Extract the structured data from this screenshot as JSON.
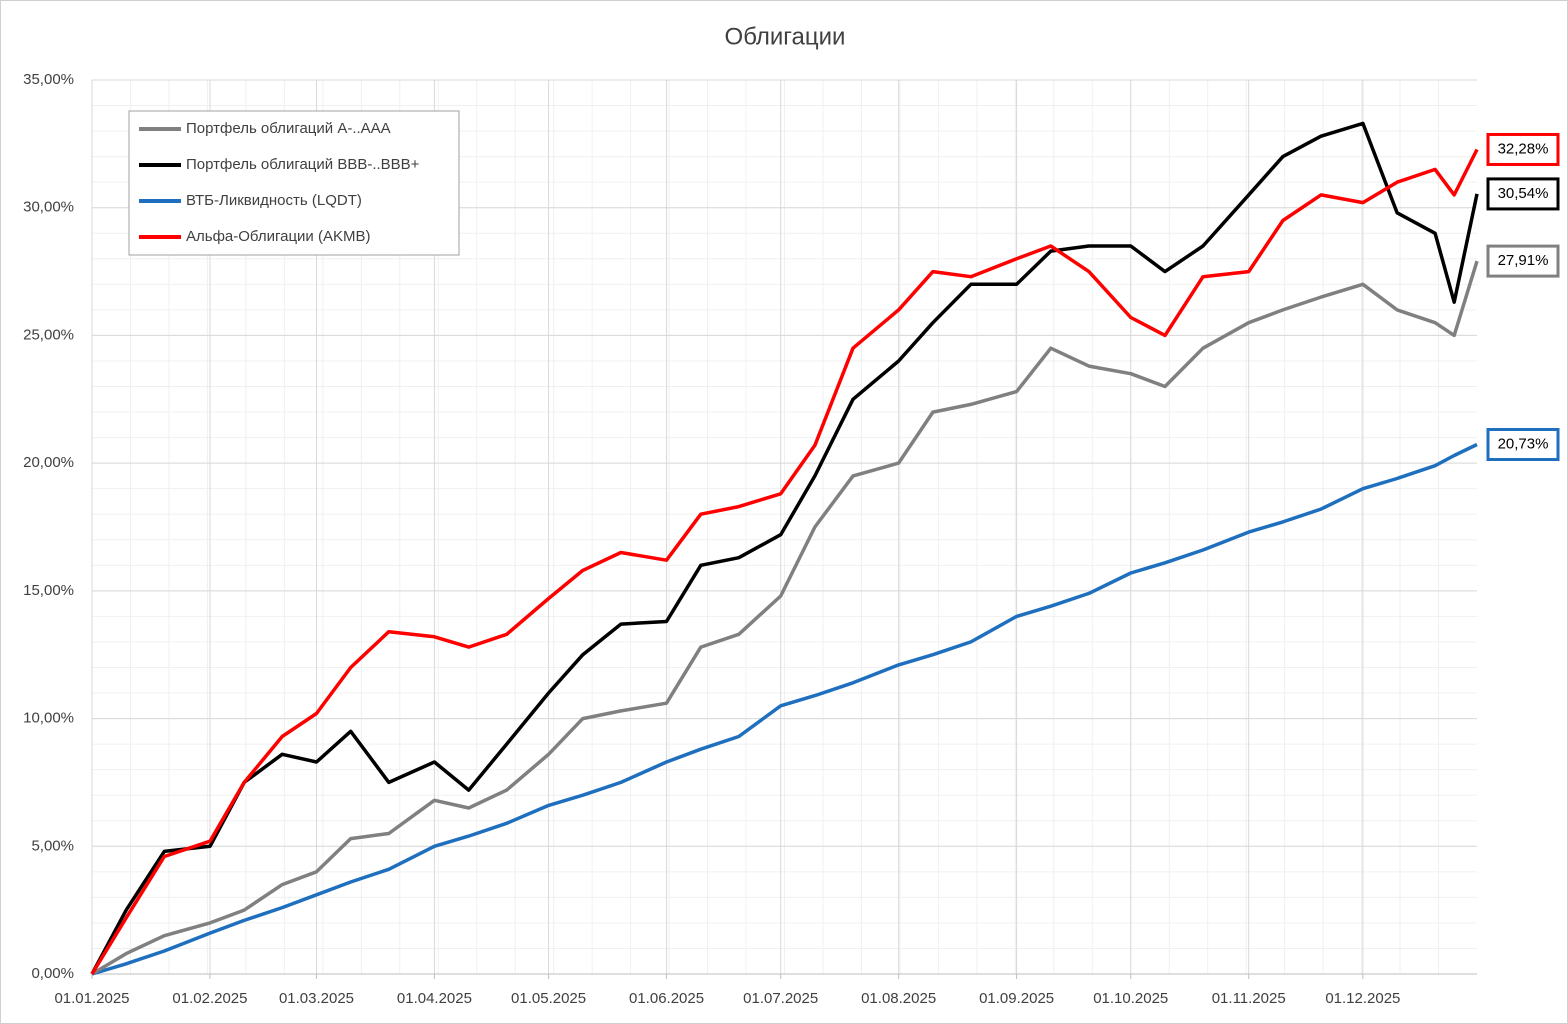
{
  "chart_data": {
    "type": "line",
    "title": "Облигации",
    "x": [
      "01.01.2025",
      "10.01.2025",
      "20.01.2025",
      "01.02.2025",
      "10.02.2025",
      "20.02.2025",
      "01.03.2025",
      "10.03.2025",
      "20.03.2025",
      "01.04.2025",
      "10.04.2025",
      "20.04.2025",
      "01.05.2025",
      "10.05.2025",
      "20.05.2025",
      "01.06.2025",
      "10.06.2025",
      "20.06.2025",
      "01.07.2025",
      "10.07.2025",
      "20.07.2025",
      "01.08.2025",
      "10.08.2025",
      "20.08.2025",
      "01.09.2025",
      "10.09.2025",
      "20.09.2025",
      "01.10.2025",
      "10.10.2025",
      "20.10.2025",
      "01.11.2025",
      "10.11.2025",
      "20.11.2025",
      "01.12.2025",
      "10.12.2025",
      "20.12.2025",
      "25.12.2025",
      "31.12.2025"
    ],
    "series": [
      {
        "name": "Портфель облигаций А-..ААА",
        "color": "#808080",
        "end_label": "27,91%",
        "values": [
          0,
          0.8,
          1.5,
          2.0,
          2.5,
          3.5,
          4.0,
          5.3,
          5.5,
          6.8,
          6.5,
          7.2,
          8.6,
          10.0,
          10.3,
          10.6,
          12.8,
          13.3,
          14.8,
          17.5,
          19.5,
          20.0,
          22.0,
          22.3,
          22.8,
          24.5,
          23.8,
          23.5,
          23.0,
          24.5,
          25.5,
          26.0,
          26.5,
          27.0,
          26.0,
          25.5,
          25.0,
          27.91
        ]
      },
      {
        "name": "Портфель облигаций BBB-..BBB+",
        "color": "#000000",
        "end_label": "30,54%",
        "values": [
          0,
          2.5,
          4.8,
          5.0,
          7.5,
          8.6,
          8.3,
          9.5,
          7.5,
          8.3,
          7.2,
          9.0,
          11.0,
          12.5,
          13.7,
          13.8,
          16.0,
          16.3,
          17.2,
          19.5,
          22.5,
          24.0,
          25.5,
          27.0,
          27.0,
          28.3,
          28.5,
          28.5,
          27.5,
          28.5,
          30.5,
          32.0,
          32.8,
          33.3,
          29.8,
          29.0,
          26.3,
          30.54
        ]
      },
      {
        "name": "ВТБ-Ликвидность (LQDT)",
        "color": "#1f6fbf",
        "end_label": "20,73%",
        "values": [
          0,
          0.4,
          0.9,
          1.6,
          2.1,
          2.6,
          3.1,
          3.6,
          4.1,
          5.0,
          5.4,
          5.9,
          6.6,
          7.0,
          7.5,
          8.3,
          8.8,
          9.3,
          10.5,
          10.9,
          11.4,
          12.1,
          12.5,
          13.0,
          14.0,
          14.4,
          14.9,
          15.7,
          16.1,
          16.6,
          17.3,
          17.7,
          18.2,
          19.0,
          19.4,
          19.9,
          20.3,
          20.73
        ]
      },
      {
        "name": "Альфа-Облигации (AKMB)",
        "color": "#ff0000",
        "end_label": "32,28%",
        "values": [
          0,
          2.2,
          4.6,
          5.2,
          7.5,
          9.3,
          10.2,
          12.0,
          13.4,
          13.2,
          12.8,
          13.3,
          14.7,
          15.8,
          16.5,
          16.2,
          18.0,
          18.3,
          18.8,
          20.7,
          24.5,
          26.0,
          27.5,
          27.3,
          28.0,
          28.5,
          27.5,
          25.7,
          25.0,
          27.3,
          27.5,
          29.5,
          30.5,
          30.2,
          31.0,
          31.5,
          30.5,
          32.28
        ]
      }
    ],
    "xlim": [
      "01.01.2025",
      "31.12.2025"
    ],
    "xticks": [
      "01.01.2025",
      "01.02.2025",
      "01.03.2025",
      "01.04.2025",
      "01.05.2025",
      "01.06.2025",
      "01.07.2025",
      "01.08.2025",
      "01.09.2025",
      "01.10.2025",
      "01.11.2025",
      "01.12.2025"
    ],
    "ylim": [
      0,
      35
    ],
    "yticks": [
      {
        "value": 0,
        "label": "0,00%"
      },
      {
        "value": 5,
        "label": "5,00%"
      },
      {
        "value": 10,
        "label": "10,00%"
      },
      {
        "value": 15,
        "label": "15,00%"
      },
      {
        "value": 20,
        "label": "20,00%"
      },
      {
        "value": 25,
        "label": "25,00%"
      },
      {
        "value": 30,
        "label": "30,00%"
      },
      {
        "value": 35,
        "label": "35,00%"
      }
    ],
    "grid": true,
    "legend": "top-left"
  }
}
